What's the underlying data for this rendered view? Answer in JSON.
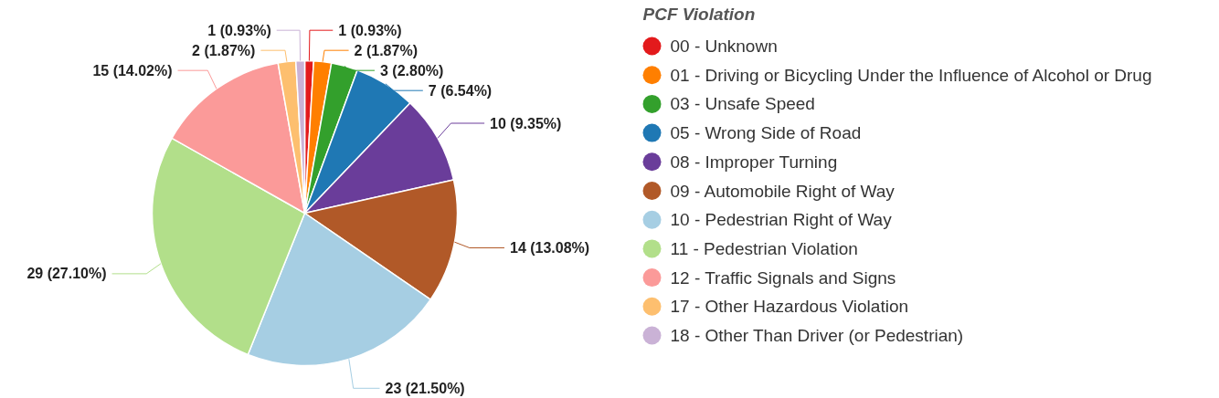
{
  "chart_data": {
    "type": "pie",
    "legend_title": "PCF Violation",
    "legend": "right",
    "categories": [
      "00 - Unknown",
      "01 - Driving or Bicycling Under the Influence of Alcohol or Drug",
      "03 - Unsafe Speed",
      "05 - Wrong Side of Road",
      "08 - Improper Turning",
      "09 - Automobile Right of Way",
      "10 - Pedestrian Right of Way",
      "11 - Pedestrian Violation",
      "12 - Traffic Signals and Signs",
      "17 - Other Hazardous Violation",
      "18 - Other Than Driver (or Pedestrian)"
    ],
    "values": [
      1,
      2,
      3,
      7,
      10,
      14,
      23,
      29,
      15,
      2,
      1
    ],
    "colors": [
      "#e31a1c",
      "#ff7f00",
      "#33a02c",
      "#1f78b4",
      "#6a3d9a",
      "#b15928",
      "#a6cee3",
      "#b2df8a",
      "#fb9a99",
      "#fdbf6f",
      "#cab2d6"
    ],
    "value_labels": [
      "1 (0.93%)",
      "2 (1.87%)",
      "3 (2.80%)",
      "7 (6.54%)",
      "10 (9.35%)",
      "14 (13.08%)",
      "23 (21.50%)",
      "29 (27.10%)",
      "15 (14.02%)",
      "2 (1.87%)",
      "1 (0.93%)"
    ]
  }
}
